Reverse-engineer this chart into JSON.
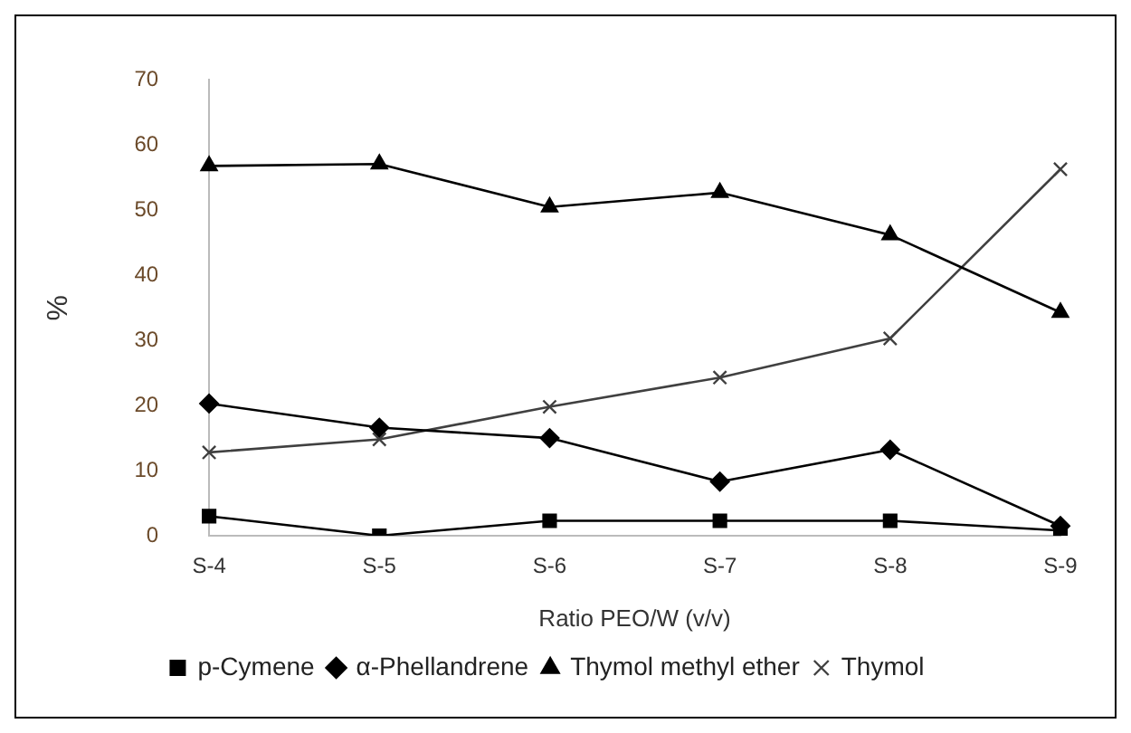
{
  "chart_data": {
    "type": "line",
    "xlabel": "Ratio PEO/W (v/v)",
    "ylabel": "%",
    "categories": [
      "S-4",
      "S-5",
      "S-6",
      "S-7",
      "S-8",
      "S-9"
    ],
    "series": [
      {
        "name": "Thymol",
        "color": "#404040",
        "marker": "cross",
        "values": [
          12.8,
          14.8,
          19.8,
          24.3,
          30.3,
          56.3
        ]
      },
      {
        "name": "Thymol methyl ether",
        "color": "#000000",
        "marker": "triangle",
        "values": [
          56.8,
          57.1,
          50.5,
          52.7,
          46.2,
          34.3
        ]
      },
      {
        "name": "α-Phellandrene",
        "color": "#000000",
        "marker": "diamond",
        "values": [
          20.3,
          16.6,
          15,
          8.3,
          13.2,
          1.5
        ]
      },
      {
        "name": "p-Cymene",
        "color": "#000000",
        "marker": "square",
        "values": [
          3,
          0,
          2.3,
          2.3,
          2.3,
          0.8
        ]
      }
    ],
    "ylim": [
      0,
      70
    ],
    "yticks": [
      0,
      10,
      20,
      30,
      40,
      50,
      60,
      70
    ],
    "grid": false,
    "legend": "bottom",
    "line_style": "solid"
  }
}
